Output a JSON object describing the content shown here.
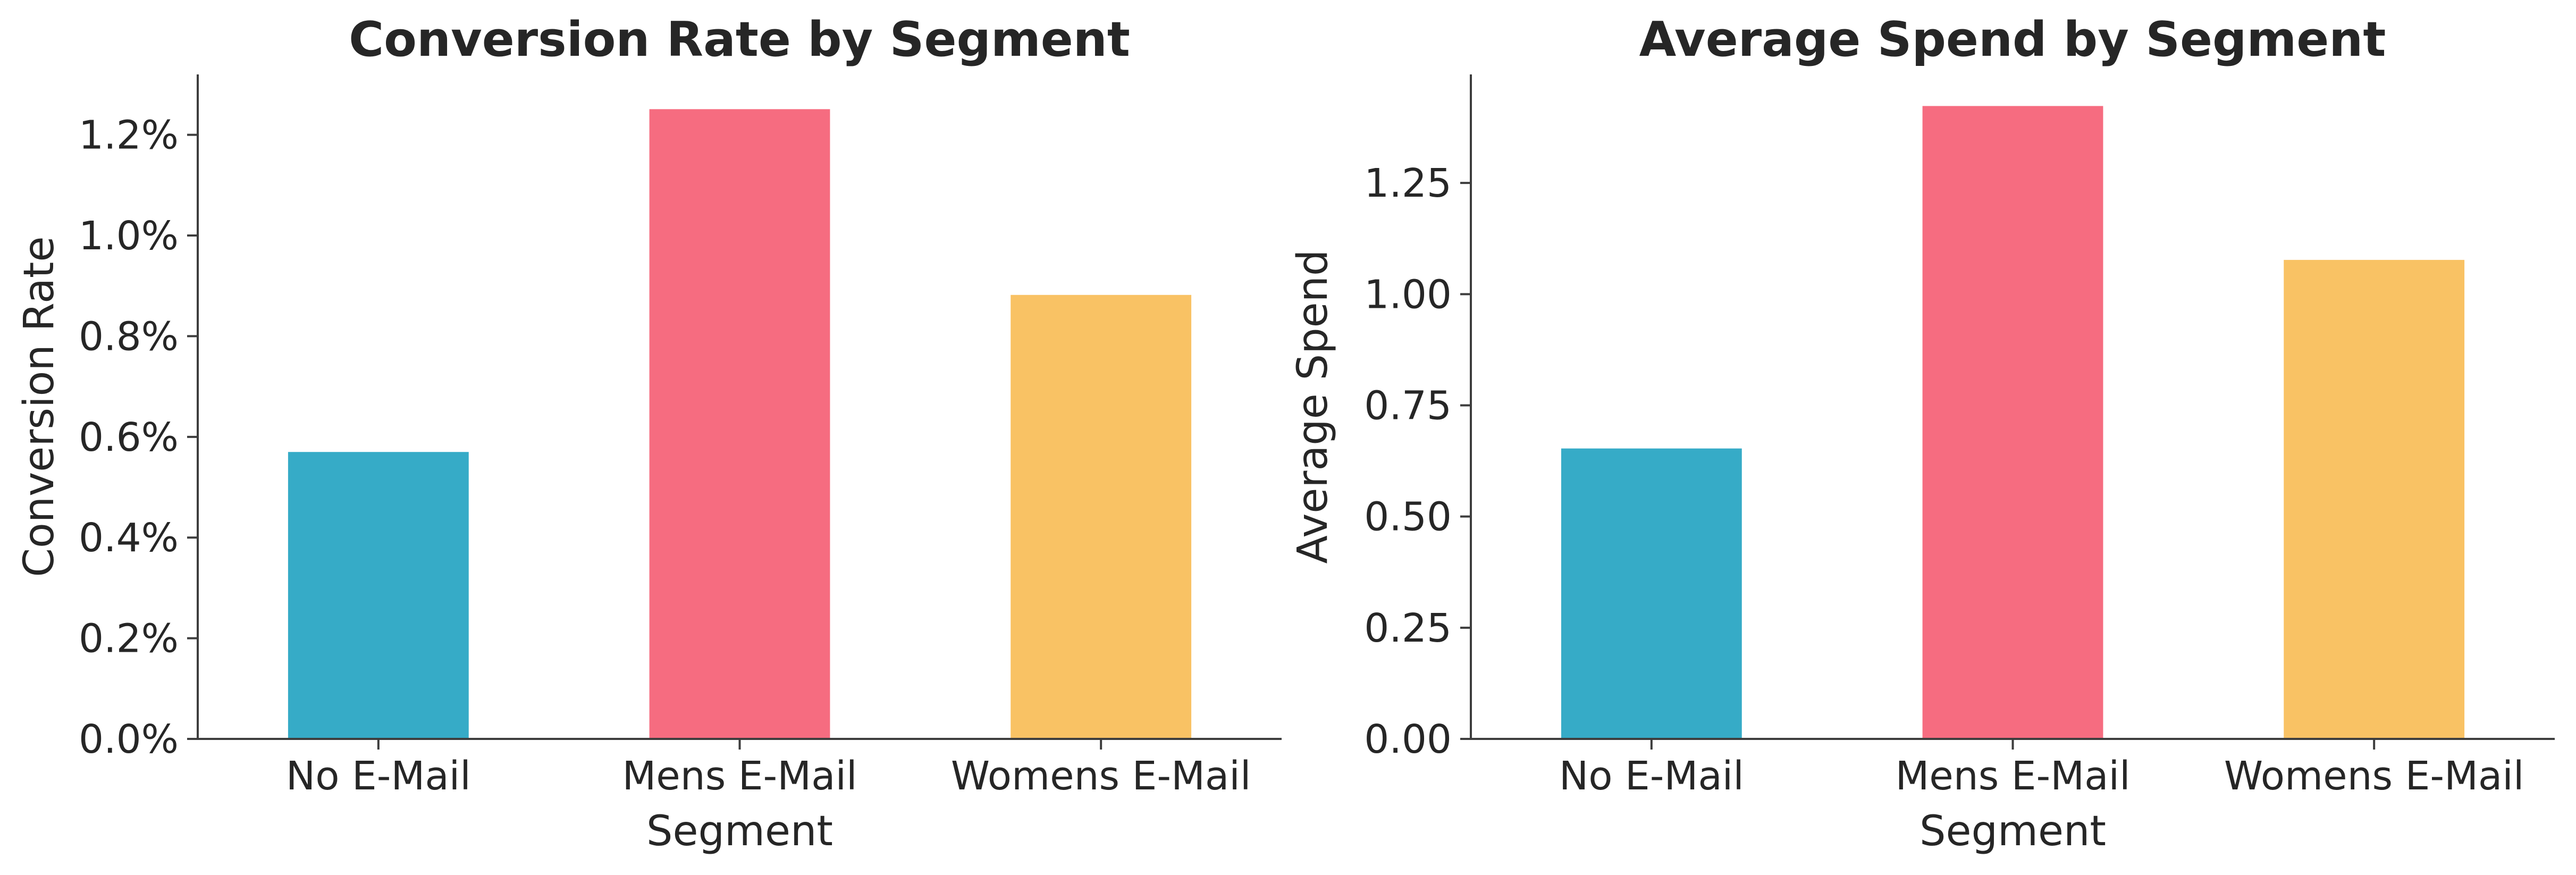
{
  "chart_data": [
    {
      "type": "bar",
      "title": "Conversion Rate by Segment",
      "xlabel": "Segment",
      "ylabel": "Conversion Rate",
      "categories": [
        "No E-Mail",
        "Mens E-Mail",
        "Womens E-Mail"
      ],
      "values": [
        0.0057,
        0.01251,
        0.00882
      ],
      "colors": [
        "#36abc7",
        "#f66c80",
        "#f9c264"
      ],
      "ylim": [
        0,
        0.0132
      ],
      "yticks": [
        0,
        0.002,
        0.004,
        0.006,
        0.008,
        0.01,
        0.012
      ],
      "ytick_labels": [
        "0.0%",
        "0.2%",
        "0.4%",
        "0.6%",
        "0.8%",
        "1.0%",
        "1.2%"
      ],
      "grid": false
    },
    {
      "type": "bar",
      "title": "Average Spend by Segment",
      "xlabel": "Segment",
      "ylabel": "Average Spend",
      "categories": [
        "No E-Mail",
        "Mens E-Mail",
        "Womens E-Mail"
      ],
      "values": [
        0.653,
        1.423,
        1.077
      ],
      "colors": [
        "#36abc7",
        "#f66c80",
        "#f9c264"
      ],
      "ylim": [
        0,
        1.494
      ],
      "yticks": [
        0,
        0.25,
        0.5,
        0.75,
        1.0,
        1.25
      ],
      "ytick_labels": [
        "0.00",
        "0.25",
        "0.50",
        "0.75",
        "1.00",
        "1.25"
      ],
      "grid": false
    }
  ]
}
